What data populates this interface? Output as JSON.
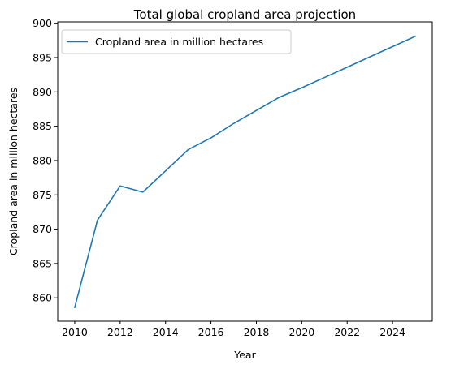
{
  "chart_data": {
    "type": "line",
    "title": "Total global cropland area projection",
    "xlabel": "Year",
    "ylabel": "Cropland area in million hectares",
    "xlim": [
      2009.25,
      2025.75
    ],
    "ylim": [
      856.6,
      900.2
    ],
    "xticks": [
      2010,
      2012,
      2014,
      2016,
      2018,
      2020,
      2022,
      2024
    ],
    "yticks": [
      860,
      865,
      870,
      875,
      880,
      885,
      890,
      895,
      900
    ],
    "grid": false,
    "legend_position": "top-left",
    "series": [
      {
        "name": "Cropland area in million hectares",
        "color": "#1f77b4",
        "x": [
          2010,
          2011,
          2012,
          2013,
          2014,
          2015,
          2016,
          2017,
          2018,
          2019,
          2020,
          2021,
          2022,
          2023,
          2024,
          2025
        ],
        "values": [
          858.6,
          871.3,
          876.3,
          875.4,
          878.5,
          881.6,
          883.3,
          885.4,
          887.3,
          889.2,
          890.6,
          892.1,
          893.6,
          895.1,
          896.6,
          898.1
        ]
      }
    ]
  }
}
